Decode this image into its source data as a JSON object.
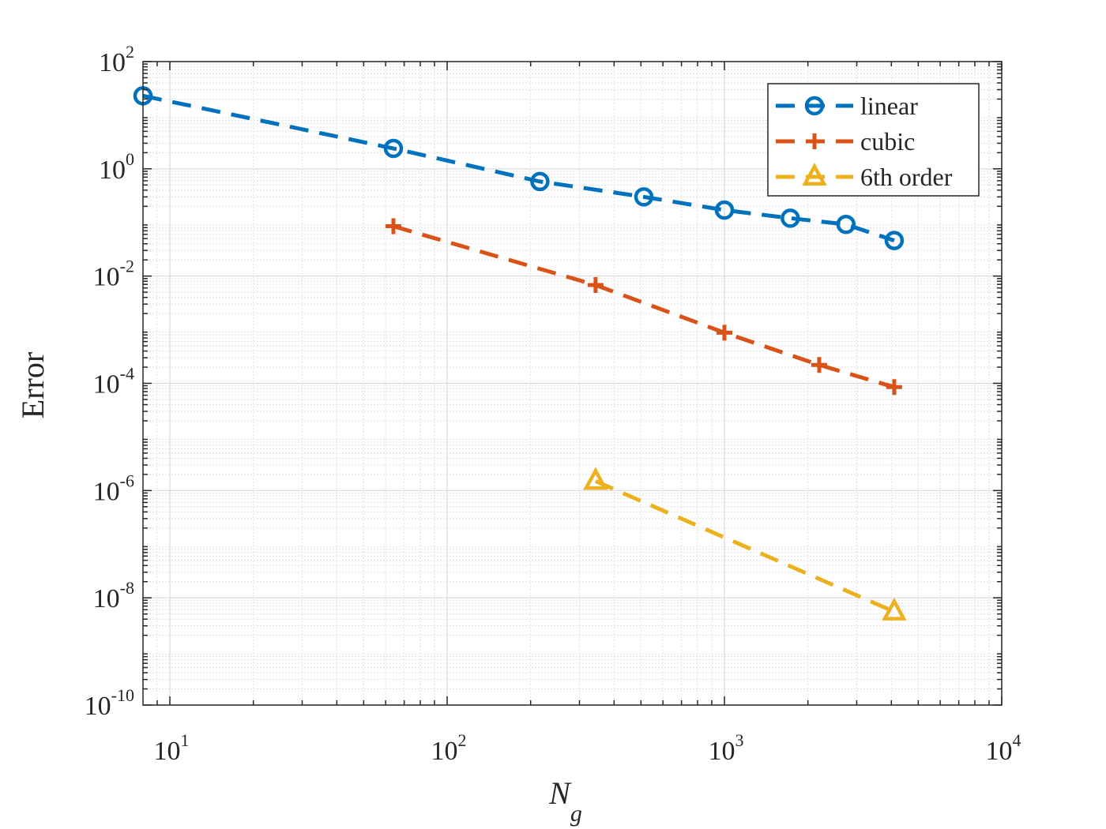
{
  "chart_data": {
    "type": "line",
    "xlabel": "N",
    "xlabel_subscript": "g",
    "ylabel": "Error",
    "xscale": "log",
    "yscale": "log",
    "xlim": [
      8,
      10000
    ],
    "ylim": [
      1e-10,
      100
    ],
    "xticks": [
      {
        "value": 10,
        "base": "10",
        "exp": "1"
      },
      {
        "value": 100,
        "base": "10",
        "exp": "2"
      },
      {
        "value": 1000,
        "base": "10",
        "exp": "3"
      },
      {
        "value": 10000,
        "base": "10",
        "exp": "4"
      }
    ],
    "yticks": [
      {
        "value": 1e-10,
        "base": "10",
        "exp": "-10"
      },
      {
        "value": 1e-08,
        "base": "10",
        "exp": "-8"
      },
      {
        "value": 1e-06,
        "base": "10",
        "exp": "-6"
      },
      {
        "value": 0.0001,
        "base": "10",
        "exp": "-4"
      },
      {
        "value": 0.01,
        "base": "10",
        "exp": "-2"
      },
      {
        "value": 1,
        "base": "10",
        "exp": "0"
      },
      {
        "value": 100,
        "base": "10",
        "exp": "2"
      }
    ],
    "grid": true,
    "legend_position": "top-right",
    "series": [
      {
        "name": "linear",
        "color": "#0072BD",
        "marker": "circle",
        "line_style": "dashed",
        "x": [
          8,
          64,
          216,
          512,
          1000,
          1728,
          2744,
          4096
        ],
        "y": [
          23,
          2.4,
          0.58,
          0.3,
          0.17,
          0.12,
          0.092,
          0.046
        ]
      },
      {
        "name": "cubic",
        "color": "#D95319",
        "marker": "plus",
        "line_style": "dashed",
        "x": [
          64,
          343,
          1000,
          2197,
          4096
        ],
        "y": [
          0.085,
          0.0068,
          0.00088,
          0.00022,
          8.5e-05
        ]
      },
      {
        "name": "6th order",
        "color": "#EDB120",
        "marker": "triangle",
        "line_style": "dashed",
        "x": [
          343,
          4096
        ],
        "y": [
          1.5e-06,
          5.5e-09
        ]
      }
    ]
  }
}
